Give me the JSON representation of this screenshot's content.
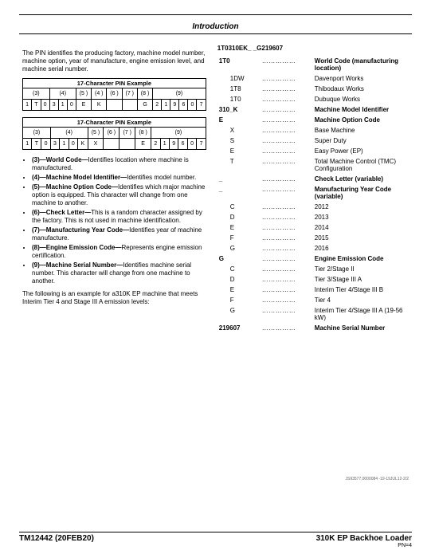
{
  "header": {
    "title": "Introduction"
  },
  "intro": "The PIN identifies the producing factory, machine model number, machine option, year of manufacture, engine emission level, and machine serial number.",
  "pin_tables": [
    {
      "caption": "17-Character PIN Example",
      "row1": [
        "(3)",
        "(4)",
        "(5 )",
        "(4 )",
        "(6 )",
        "(7 )",
        "(8 )",
        "(9)"
      ],
      "row2": [
        "1",
        "T",
        "0",
        "3",
        "1",
        "0",
        "E",
        "K",
        "",
        "",
        "G",
        "2",
        "1",
        "9",
        "6",
        "0",
        "7"
      ]
    },
    {
      "caption": "17-Character PIN Example",
      "row1": [
        "(3)",
        "(4)",
        "(5 )",
        "(6 )",
        "(7 )",
        "(8 )",
        "(9)"
      ],
      "row2": [
        "1",
        "T",
        "0",
        "3",
        "1",
        "0",
        "K",
        "X",
        "",
        "",
        "E",
        "2",
        "1",
        "9",
        "6",
        "0",
        "7"
      ]
    }
  ],
  "bullets": [
    {
      "code": "(3)—World Code—",
      "text": "Identifies location where machine is manufactured."
    },
    {
      "code": "(4)—Machine Model Identifier—",
      "text": "Identifies model number."
    },
    {
      "code": "(5)—Machine Option Code—",
      "text": "Identifies which major machine option is equipped. This character will change from one machine to another."
    },
    {
      "code": "(6)—Check Letter—",
      "text": "This is a random character assigned by the factory. This is not used in machine identification."
    },
    {
      "code": "(7)—Manufacturing Year Code—",
      "text": "Identifies year of machine manufacture."
    },
    {
      "code": "(8)—Engine Emission Code—",
      "text": "Represents engine emission certification."
    },
    {
      "code": "(9)—Machine Serial Number—",
      "text": "Identifies machine serial number. This character will change from one machine to another."
    }
  ],
  "follow": "The following is an example for a310K EP machine that meets Interim Tier 4 and Stage III A emission levels:",
  "pin_example": "1T0310EK_ _G219607",
  "decode": [
    {
      "code": "1T0",
      "desc": "World Code (manufacturing location)",
      "bold": true,
      "indent": false
    },
    {
      "code": "1DW",
      "desc": "Davenport Works",
      "bold": false,
      "indent": true
    },
    {
      "code": "1T8",
      "desc": "Thibodaux Works",
      "bold": false,
      "indent": true
    },
    {
      "code": "1T0",
      "desc": "Dubuque Works",
      "bold": false,
      "indent": true
    },
    {
      "code": "310_K",
      "desc": "Machine Model Identifier",
      "bold": true,
      "indent": false
    },
    {
      "code": "E",
      "desc": "Machine Option Code",
      "bold": true,
      "indent": false
    },
    {
      "code": "X",
      "desc": "Base Machine",
      "bold": false,
      "indent": true
    },
    {
      "code": "S",
      "desc": "Super Duty",
      "bold": false,
      "indent": true
    },
    {
      "code": "E",
      "desc": "Easy Power (EP)",
      "bold": false,
      "indent": true
    },
    {
      "code": "T",
      "desc": "Total Machine Control (TMC) Configuration",
      "bold": false,
      "indent": true
    },
    {
      "code": "_",
      "desc": "Check Letter (variable)",
      "bold": true,
      "indent": false
    },
    {
      "code": "_",
      "desc": "Manufacturing Year Code (variable)",
      "bold": true,
      "indent": false
    },
    {
      "code": "C",
      "desc": "2012",
      "bold": false,
      "indent": true
    },
    {
      "code": "D",
      "desc": "2013",
      "bold": false,
      "indent": true
    },
    {
      "code": "E",
      "desc": "2014",
      "bold": false,
      "indent": true
    },
    {
      "code": "F",
      "desc": "2015",
      "bold": false,
      "indent": true
    },
    {
      "code": "G",
      "desc": "2016",
      "bold": false,
      "indent": true
    },
    {
      "code": "G",
      "desc": "Engine Emission Code",
      "bold": true,
      "indent": false
    },
    {
      "code": "C",
      "desc": "Tier 2/Stage II",
      "bold": false,
      "indent": true
    },
    {
      "code": "D",
      "desc": "Tier 3/Stage III A",
      "bold": false,
      "indent": true
    },
    {
      "code": "E",
      "desc": "Interim Tier 4/Stage III B",
      "bold": false,
      "indent": true
    },
    {
      "code": "F",
      "desc": "Tier 4",
      "bold": false,
      "indent": true
    },
    {
      "code": "G",
      "desc": "Interim Tier 4/Stage III A (19-56 kW)",
      "bold": false,
      "indent": true
    },
    {
      "code": "219607",
      "desc": "Machine Serial Number",
      "bold": true,
      "indent": false
    }
  ],
  "smallprint": "JS93577,0000084 -19-19JUL12-2/2",
  "footer": {
    "left": "TM12442 (20FEB20)",
    "right": "310K EP Backhoe Loader",
    "page": "PN=4"
  }
}
